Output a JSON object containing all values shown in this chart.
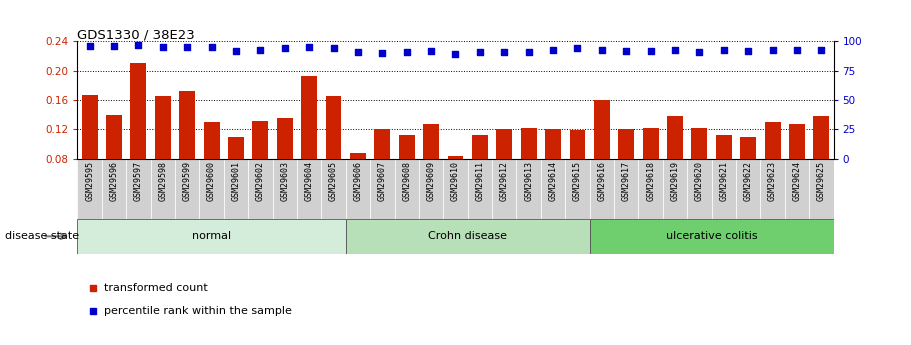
{
  "title": "GDS1330 / 38E23",
  "samples": [
    "GSM29595",
    "GSM29596",
    "GSM29597",
    "GSM29598",
    "GSM29599",
    "GSM29600",
    "GSM29601",
    "GSM29602",
    "GSM29603",
    "GSM29604",
    "GSM29605",
    "GSM29606",
    "GSM29607",
    "GSM29608",
    "GSM29609",
    "GSM29610",
    "GSM29611",
    "GSM29612",
    "GSM29613",
    "GSM29614",
    "GSM29615",
    "GSM29616",
    "GSM29617",
    "GSM29618",
    "GSM29619",
    "GSM29620",
    "GSM29621",
    "GSM29622",
    "GSM29623",
    "GSM29624",
    "GSM29625"
  ],
  "bar_values": [
    0.167,
    0.14,
    0.21,
    0.165,
    0.172,
    0.13,
    0.11,
    0.131,
    0.135,
    0.193,
    0.165,
    0.088,
    0.121,
    0.113,
    0.127,
    0.084,
    0.113,
    0.121,
    0.122,
    0.121,
    0.119,
    0.16,
    0.121,
    0.122,
    0.138,
    0.122,
    0.113,
    0.109,
    0.13,
    0.128,
    0.138
  ],
  "percentile_values": [
    96,
    96,
    97,
    95,
    95,
    95,
    92,
    93,
    94,
    95,
    94,
    91,
    90,
    91,
    92,
    89,
    91,
    91,
    91,
    93,
    94,
    93,
    92,
    92,
    93,
    91,
    93,
    92,
    93,
    93,
    93
  ],
  "groups": [
    {
      "label": "normal",
      "start": 0,
      "end": 11,
      "color": "#d4edda"
    },
    {
      "label": "Crohn disease",
      "start": 11,
      "end": 21,
      "color": "#b8e0b8"
    },
    {
      "label": "ulcerative colitis",
      "start": 21,
      "end": 31,
      "color": "#6fcf6f"
    }
  ],
  "ylim_left": [
    0.08,
    0.24
  ],
  "ylim_right": [
    0,
    100
  ],
  "yticks_left": [
    0.08,
    0.12,
    0.16,
    0.2,
    0.24
  ],
  "yticks_right": [
    0,
    25,
    50,
    75,
    100
  ],
  "bar_color": "#cc2200",
  "dot_color": "#0000cc",
  "background_color": "#ffffff",
  "bar_width": 0.65,
  "legend_bar": "transformed count",
  "legend_dot": "percentile rank within the sample",
  "disease_state_label": "disease state",
  "tick_bg_color": "#d0d0d0"
}
